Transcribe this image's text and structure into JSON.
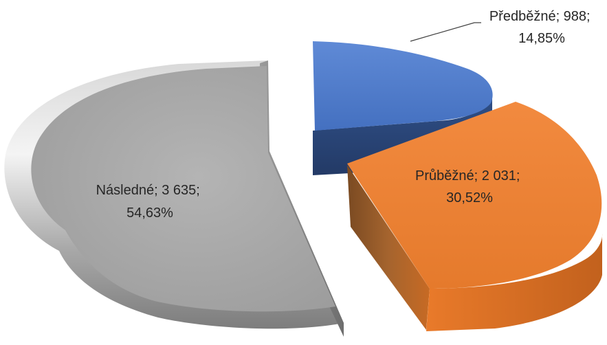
{
  "chart_data": {
    "type": "pie",
    "title": "",
    "legend": "none",
    "slices": [
      {
        "name": "Předběžné",
        "value": 988,
        "percent": "14,85%",
        "color": "#4472C4",
        "label_line1": "Předběžné; 988;",
        "label_line2": "14,85%"
      },
      {
        "name": "Průběžné",
        "value": 2031,
        "percent": "30,52%",
        "color": "#ED7D31",
        "label_line1": "Průběžné; 2 031;",
        "label_line2": "30,52%"
      },
      {
        "name": "Následné",
        "value": 3635,
        "percent": "54,63%",
        "color": "#A5A5A5",
        "label_line1": "Následné; 3 635;",
        "label_line2": "54,63%"
      }
    ]
  }
}
